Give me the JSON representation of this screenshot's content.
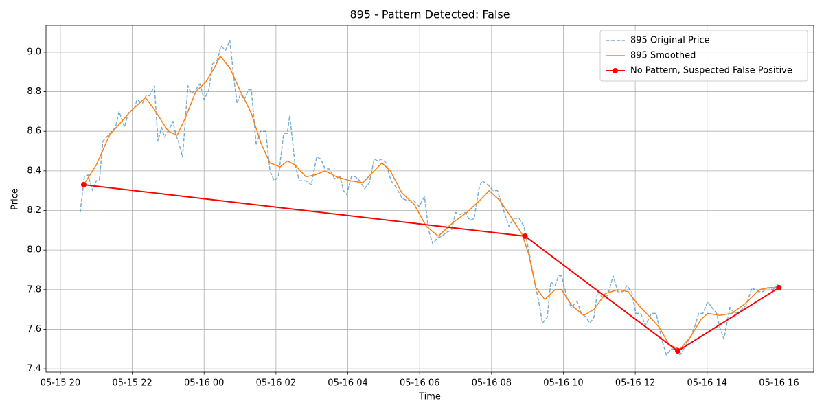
{
  "chart_data": {
    "type": "line",
    "title": "895 - Pattern Detected: False",
    "xlabel": "Time",
    "ylabel": "Price",
    "xlim": [
      "05-15 19:36",
      "05-16 16:58"
    ],
    "xticks": [
      {
        "value": "05-15 20:00",
        "label": "05-15 20"
      },
      {
        "value": "05-15 22:00",
        "label": "05-15 22"
      },
      {
        "value": "05-16 00:00",
        "label": "05-16 00"
      },
      {
        "value": "05-16 02:00",
        "label": "05-16 02"
      },
      {
        "value": "05-16 04:00",
        "label": "05-16 04"
      },
      {
        "value": "05-16 06:00",
        "label": "05-16 06"
      },
      {
        "value": "05-16 08:00",
        "label": "05-16 08"
      },
      {
        "value": "05-16 10:00",
        "label": "05-16 10"
      },
      {
        "value": "05-16 12:00",
        "label": "05-16 12"
      },
      {
        "value": "05-16 14:00",
        "label": "05-16 14"
      },
      {
        "value": "05-16 16:00",
        "label": "05-16 16"
      }
    ],
    "ylim": [
      7.383,
      9.135
    ],
    "yticks": [
      7.4,
      7.6,
      7.8,
      {
        "value": 8,
        "label": "8.0"
      },
      8.2,
      8.4,
      8.6,
      8.8,
      {
        "value": 9,
        "label": "9.0"
      }
    ],
    "grid": true,
    "legend": "upper right",
    "series": [
      {
        "name": "895 Original Price",
        "color": "#1f77b4",
        "linestyle": "dashed",
        "x": [
          "05-15 20:33",
          "05-15 20:40",
          "05-15 20:46",
          "05-15 20:54",
          "05-15 21:00",
          "05-15 21:05",
          "05-15 21:11",
          "05-15 21:17",
          "05-15 21:32",
          "05-15 21:38",
          "05-15 21:47",
          "05-15 21:54",
          "05-15 22:03",
          "05-15 22:08",
          "05-15 22:17",
          "05-15 22:23",
          "05-15 22:29",
          "05-15 22:37",
          "05-15 22:43",
          "05-15 22:49",
          "05-15 22:54",
          "05-15 23:00",
          "05-15 23:08",
          "05-15 23:13",
          "05-15 23:17",
          "05-15 23:24",
          "05-15 23:33",
          "05-15 23:39",
          "05-15 23:46",
          "05-15 23:53",
          "05-16 00:00",
          "05-16 00:08",
          "05-16 00:14",
          "05-16 00:22",
          "05-16 00:28",
          "05-16 00:36",
          "05-16 00:43",
          "05-16 00:50",
          "05-16 00:55",
          "05-16 01:01",
          "05-16 01:07",
          "05-16 01:14",
          "05-16 01:19",
          "05-16 01:27",
          "05-16 01:34",
          "05-16 01:43",
          "05-16 01:50",
          "05-16 01:57",
          "05-16 02:04",
          "05-16 02:13",
          "05-16 02:19",
          "05-16 02:23",
          "05-16 02:32",
          "05-16 02:39",
          "05-16 02:50",
          "05-16 02:59",
          "05-16 03:08",
          "05-16 03:15",
          "05-16 03:22",
          "05-16 03:29",
          "05-16 03:38",
          "05-16 03:47",
          "05-16 03:53",
          "05-16 03:58",
          "05-16 04:06",
          "05-16 04:13",
          "05-16 04:20",
          "05-16 04:28",
          "05-16 04:36",
          "05-16 04:44",
          "05-16 04:50",
          "05-16 04:57",
          "05-16 05:04",
          "05-16 05:12",
          "05-16 05:20",
          "05-16 05:31",
          "05-16 05:40",
          "05-16 05:50",
          "05-16 05:59",
          "05-16 06:08",
          "05-16 06:15",
          "05-16 06:22",
          "05-16 06:29",
          "05-16 06:37",
          "05-16 06:45",
          "05-16 06:53",
          "05-16 07:00",
          "05-16 07:08",
          "05-16 07:16",
          "05-16 07:24",
          "05-16 07:31",
          "05-16 07:39",
          "05-16 07:44",
          "05-16 07:54",
          "05-16 08:03",
          "05-16 08:10",
          "05-16 08:19",
          "05-16 08:29",
          "05-16 08:37",
          "05-16 08:46",
          "05-16 08:54",
          "05-16 09:02",
          "05-16 09:12",
          "05-16 09:20",
          "05-16 09:25",
          "05-16 09:33",
          "05-16 09:39",
          "05-16 09:46",
          "05-16 09:52",
          "05-16 09:57",
          "05-16 10:05",
          "05-16 10:13",
          "05-16 10:23",
          "05-16 10:30",
          "05-16 10:38",
          "05-16 10:44",
          "05-16 10:51",
          "05-16 10:57",
          "05-16 11:05",
          "05-16 11:14",
          "05-16 11:23",
          "05-16 11:31",
          "05-16 11:40",
          "05-16 11:46",
          "05-16 11:54",
          "05-16 12:01",
          "05-16 12:09",
          "05-16 12:17",
          "05-16 12:27",
          "05-16 12:35",
          "05-16 12:44",
          "05-16 12:52",
          "05-16 13:00",
          "05-16 13:08",
          "05-16 13:15",
          "05-16 13:23",
          "05-16 13:32",
          "05-16 13:39",
          "05-16 13:46",
          "05-16 13:53",
          "05-16 14:01",
          "05-16 14:08",
          "05-16 14:16",
          "05-16 14:21",
          "05-16 14:28",
          "05-16 14:38",
          "05-16 14:46",
          "05-16 14:55",
          "05-16 15:05",
          "05-16 15:15",
          "05-16 15:24",
          "05-16 15:33",
          "05-16 15:41",
          "05-16 15:50",
          "05-16 16:00"
        ],
        "values": [
          8.19,
          8.37,
          8.38,
          8.3,
          8.35,
          8.35,
          8.55,
          8.57,
          8.62,
          8.7,
          8.62,
          8.7,
          8.71,
          8.76,
          8.74,
          8.78,
          8.78,
          8.83,
          8.55,
          8.62,
          8.57,
          8.6,
          8.65,
          8.58,
          8.55,
          8.47,
          8.83,
          8.79,
          8.81,
          8.84,
          8.76,
          8.81,
          8.94,
          8.96,
          9.03,
          9.01,
          9.06,
          8.86,
          8.74,
          8.79,
          8.76,
          8.81,
          8.81,
          8.53,
          8.6,
          8.6,
          8.4,
          8.35,
          8.37,
          8.59,
          8.59,
          8.68,
          8.43,
          8.35,
          8.35,
          8.33,
          8.47,
          8.46,
          8.41,
          8.41,
          8.36,
          8.37,
          8.3,
          8.28,
          8.37,
          8.37,
          8.35,
          8.31,
          8.34,
          8.46,
          8.45,
          8.46,
          8.44,
          8.35,
          8.32,
          8.26,
          8.25,
          8.25,
          8.22,
          8.27,
          8.1,
          8.03,
          8.06,
          8.07,
          8.09,
          8.1,
          8.19,
          8.18,
          8.19,
          8.15,
          8.16,
          8.31,
          8.35,
          8.33,
          8.3,
          8.3,
          8.21,
          8.12,
          8.16,
          8.16,
          8.12,
          8.0,
          7.84,
          7.72,
          7.63,
          7.66,
          7.84,
          7.82,
          7.87,
          7.87,
          7.77,
          7.71,
          7.74,
          7.68,
          7.66,
          7.63,
          7.66,
          7.79,
          7.76,
          7.77,
          7.87,
          7.79,
          7.79,
          7.82,
          7.79,
          7.68,
          7.68,
          7.62,
          7.68,
          7.68,
          7.55,
          7.47,
          7.5,
          7.5,
          7.47,
          7.51,
          7.56,
          7.61,
          7.68,
          7.68,
          7.74,
          7.71,
          7.68,
          7.61,
          7.55,
          7.71,
          7.68,
          7.69,
          7.72,
          7.81,
          7.79,
          7.79,
          7.81,
          7.8,
          7.83
        ]
      },
      {
        "name": "895 Smoothed",
        "color": "#ff7f0e",
        "linestyle": "solid",
        "x": [
          "05-15 20:39",
          "05-15 21:00",
          "05-15 21:22",
          "05-15 21:57",
          "05-15 22:22",
          "05-15 22:37",
          "05-15 23:00",
          "05-15 23:15",
          "05-15 23:29",
          "05-15 23:46",
          "05-16 00:03",
          "05-16 00:17",
          "05-16 00:27",
          "05-16 00:43",
          "05-16 01:01",
          "05-16 01:19",
          "05-16 01:35",
          "05-16 01:50",
          "05-16 02:07",
          "05-16 02:19",
          "05-16 02:32",
          "05-16 02:50",
          "05-16 03:06",
          "05-16 03:22",
          "05-16 03:41",
          "05-16 04:04",
          "05-16 04:25",
          "05-16 04:44",
          "05-16 04:57",
          "05-16 05:11",
          "05-16 05:30",
          "05-16 05:51",
          "05-16 06:11",
          "05-16 06:31",
          "05-16 06:56",
          "05-16 07:19",
          "05-16 07:40",
          "05-16 07:56",
          "05-16 08:14",
          "05-16 08:34",
          "05-16 08:51",
          "05-16 09:02",
          "05-16 09:14",
          "05-16 09:29",
          "05-16 09:46",
          "05-16 09:57",
          "05-16 10:14",
          "05-16 10:34",
          "05-16 10:51",
          "05-16 11:10",
          "05-16 11:31",
          "05-16 11:48",
          "05-16 12:06",
          "05-16 12:25",
          "05-16 12:40",
          "05-16 12:57",
          "05-16 13:15",
          "05-16 13:32",
          "05-16 13:50",
          "05-16 14:01",
          "05-16 14:21",
          "05-16 14:41",
          "05-16 15:04",
          "05-16 15:27",
          "05-16 15:44",
          "05-16 16:00"
        ],
        "values": [
          8.33,
          8.43,
          8.58,
          8.7,
          8.77,
          8.71,
          8.6,
          8.58,
          8.67,
          8.8,
          8.85,
          8.92,
          8.98,
          8.92,
          8.8,
          8.69,
          8.54,
          8.44,
          8.42,
          8.45,
          8.43,
          8.37,
          8.38,
          8.4,
          8.37,
          8.35,
          8.34,
          8.4,
          8.44,
          8.4,
          8.29,
          8.23,
          8.12,
          8.07,
          8.14,
          8.19,
          8.25,
          8.3,
          8.25,
          8.16,
          8.08,
          7.98,
          7.81,
          7.75,
          7.8,
          7.8,
          7.72,
          7.67,
          7.7,
          7.78,
          7.8,
          7.79,
          7.72,
          7.66,
          7.61,
          7.52,
          7.5,
          7.56,
          7.65,
          7.68,
          7.67,
          7.68,
          7.73,
          7.8,
          7.81,
          7.81
        ]
      },
      {
        "name": "No Pattern, Suspected False Positive",
        "color": "#ff0000",
        "linestyle": "solid",
        "marker": "o",
        "x": [
          "05-15 20:39",
          "05-16 08:56",
          "05-16 13:11",
          "05-16 16:00"
        ],
        "values": [
          8.33,
          8.07,
          7.49,
          7.81
        ]
      }
    ]
  }
}
